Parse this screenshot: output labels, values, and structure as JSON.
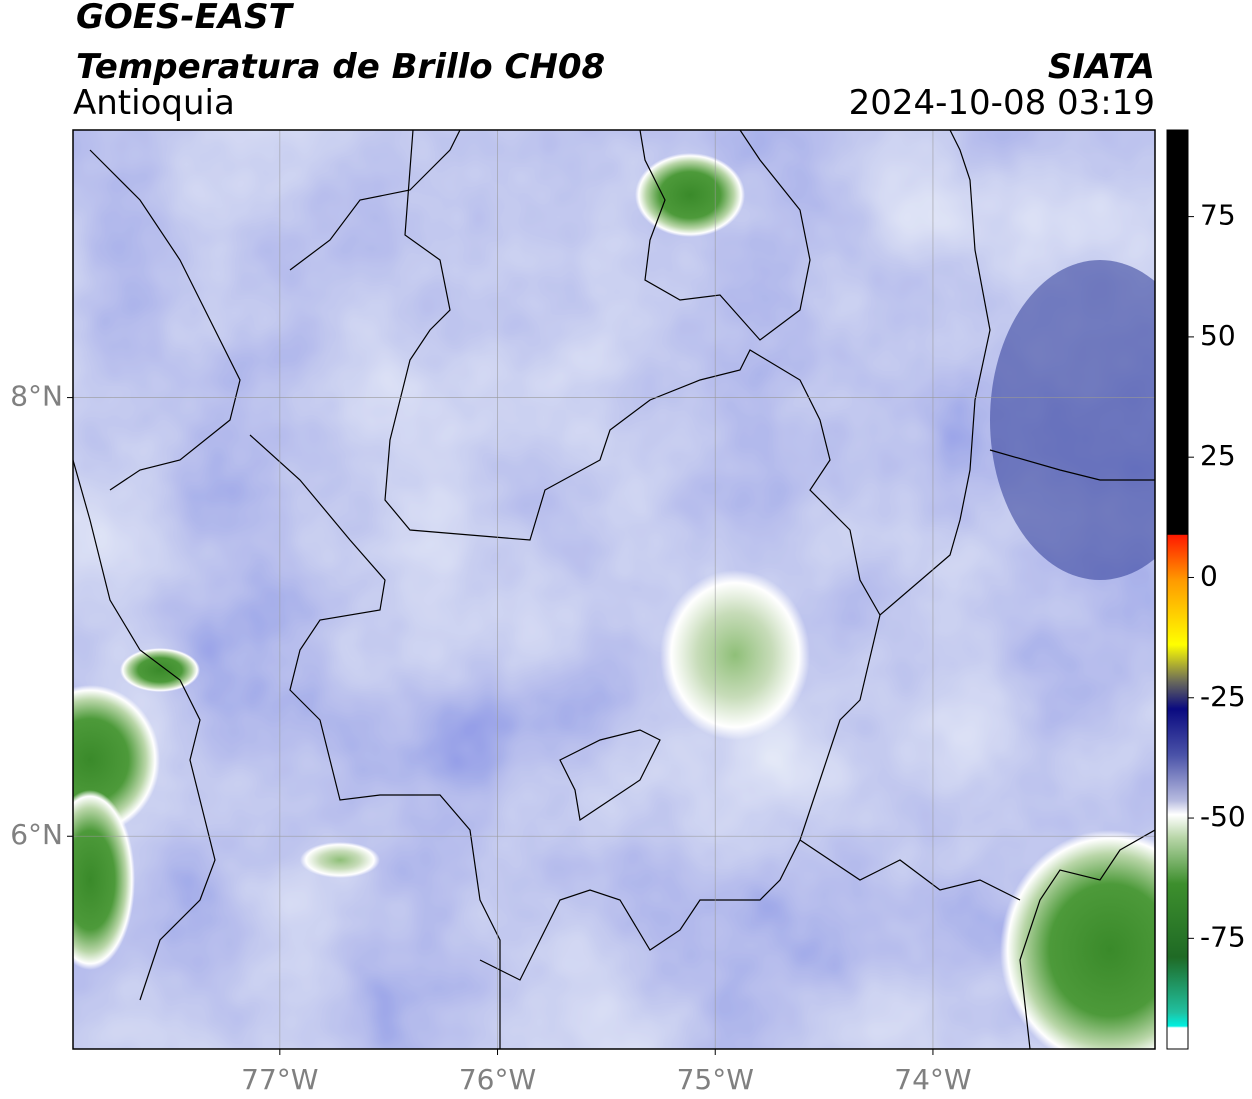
{
  "header": {
    "title": "GOES-EAST",
    "subtitle": "Temperatura de Brillo CH08",
    "region": "Antioquia",
    "source": "SIATA",
    "datetime": "2024-10-08 03:19"
  },
  "map": {
    "xlim": [
      -77.95,
      -72.98
    ],
    "ylim": [
      5.03,
      9.22
    ],
    "xticks": [
      {
        "value": -77,
        "label": "77°W"
      },
      {
        "value": -76,
        "label": "76°W"
      },
      {
        "value": -75,
        "label": "75°W"
      },
      {
        "value": -74,
        "label": "74°W"
      }
    ],
    "yticks": [
      {
        "value": 6,
        "label": "6°N"
      },
      {
        "value": 8,
        "label": "8°N"
      }
    ],
    "grid": true
  },
  "colorbar": {
    "lim": [
      -98,
      93
    ],
    "ticks": [
      -75,
      -50,
      -25,
      0,
      25,
      50,
      75
    ]
  }
}
